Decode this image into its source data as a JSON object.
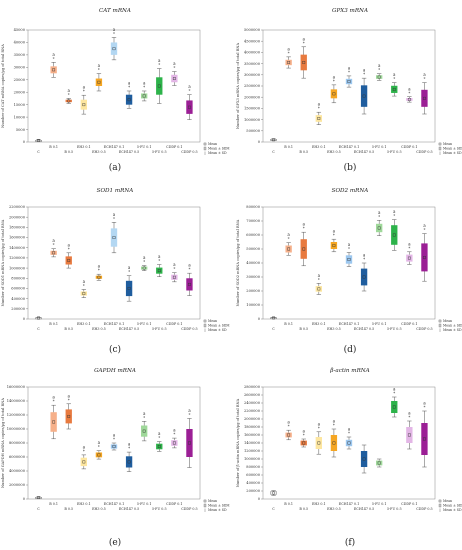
{
  "legend": {
    "mean": "Mean",
    "sem": "Mean ± SEM",
    "sd": "Mean ± SD"
  },
  "chart_data": [
    {
      "type": "box",
      "panel": "(a)",
      "title": "CAT mRNA",
      "ylabel": "Number of CAT mRNA copies/µg of total RNA",
      "ylim": [
        0,
        45000
      ],
      "yticks": [
        0,
        5000,
        10000,
        15000,
        20000,
        25000,
        30000,
        35000,
        40000,
        45000
      ],
      "categories": [
        "C",
        "B 0.1",
        "B 0.5",
        "EH3 0.1",
        "EH3 0.5",
        "ECH147 0.1",
        "ECH147 0.5",
        "5-FU 0.1",
        "5-FU 0.5",
        "CDDP 0.1",
        "CDDP 0.5"
      ],
      "sig": [
        "",
        "a",
        "a",
        "a",
        "a",
        "a",
        "a",
        "a",
        "a",
        "a",
        "a"
      ],
      "series": [
        {
          "name": "Mean",
          "values": [
            600,
            29000,
            16500,
            15000,
            24000,
            37500,
            17000,
            18500,
            22500,
            25500,
            14000
          ]
        },
        {
          "name": "SEM",
          "values": [
            100,
            1400,
            500,
            2000,
            1500,
            2500,
            2000,
            1000,
            3500,
            1500,
            2700
          ]
        },
        {
          "name": "SD",
          "values": [
            300,
            3000,
            1000,
            3800,
            3500,
            4500,
            3500,
            2000,
            7000,
            2800,
            5000
          ]
        }
      ]
    },
    {
      "type": "box",
      "panel": "(b)",
      "title": "GPX3 mRNA",
      "ylabel": "Number of GPX3 mRNA copies/µg of total RNA",
      "ylim": [
        0,
        5000000
      ],
      "yticks": [
        0,
        500000,
        1000000,
        1500000,
        2000000,
        2500000,
        3000000,
        3500000,
        4000000,
        4500000,
        5000000
      ],
      "categories": [
        "C",
        "B 0.1",
        "B 0.5",
        "EH3 0.1",
        "EH3 0.5",
        "ECH147 0.1",
        "ECH147 0.5",
        "5-FU 0.1",
        "5-FU 0.5",
        "CDDP 0.1",
        "CDDP 0.5"
      ],
      "sig": [
        "",
        "a",
        "a",
        "a",
        "a",
        "a",
        "a",
        "a",
        "a",
        "a",
        "a"
      ],
      "series": [
        {
          "name": "Mean",
          "values": [
            100000,
            3550000,
            3550000,
            1050000,
            2150000,
            2700000,
            2050000,
            2900000,
            2350000,
            1900000,
            1950000
          ]
        },
        {
          "name": "SEM",
          "values": [
            20000,
            120000,
            350000,
            150000,
            200000,
            120000,
            480000,
            80000,
            160000,
            60000,
            380000
          ]
        },
        {
          "name": "SD",
          "values": [
            40000,
            250000,
            700000,
            280000,
            400000,
            250000,
            800000,
            150000,
            300000,
            120000,
            700000
          ]
        }
      ]
    },
    {
      "type": "box",
      "panel": "(c)",
      "title": "SOD1 mRNA",
      "ylabel": "Number of SOD1 mRNA copies/µg of total RNA",
      "ylim": [
        0,
        2200000
      ],
      "yticks": [
        0,
        200000,
        400000,
        600000,
        800000,
        1000000,
        1200000,
        1400000,
        1600000,
        1800000,
        2000000,
        2200000
      ],
      "categories": [
        "C",
        "B 0.1",
        "B 0.5",
        "EH3 0.1",
        "EH3 0.5",
        "ECH147 0.1",
        "ECH147 0.5",
        "5-FU 0.1",
        "5-FU 0.5",
        "CDDP 0.1",
        "CDDP 0.5"
      ],
      "sig": [
        "",
        "a",
        "a",
        "a",
        "a",
        "a",
        "a",
        "a",
        "a",
        "a",
        "a"
      ],
      "series": [
        {
          "name": "Mean",
          "values": [
            20000,
            1300000,
            1150000,
            500000,
            820000,
            1600000,
            600000,
            1000000,
            950000,
            820000,
            680000
          ]
        },
        {
          "name": "SEM",
          "values": [
            5000,
            40000,
            80000,
            40000,
            30000,
            180000,
            150000,
            30000,
            60000,
            50000,
            120000
          ]
        },
        {
          "name": "SD",
          "values": [
            10000,
            80000,
            150000,
            80000,
            60000,
            300000,
            250000,
            50000,
            120000,
            90000,
            220000
          ]
        }
      ]
    },
    {
      "type": "box",
      "panel": "(d)",
      "title": "SOD2 mRNA",
      "ylabel": "Number of SOD2 mRNA copies/µg of total RNA",
      "ylim": [
        0,
        800000
      ],
      "yticks": [
        0,
        100000,
        200000,
        300000,
        400000,
        500000,
        600000,
        700000,
        800000
      ],
      "categories": [
        "C",
        "B 0.1",
        "B 0.5",
        "EH3 0.1",
        "EH3 0.5",
        "ECH147 0.1",
        "ECH147 0.5",
        "5-FU 0.1",
        "5-FU 0.5",
        "CDDP 0.1",
        "CDDP 0.5"
      ],
      "sig": [
        "",
        "a",
        "a",
        "a",
        "a",
        "a",
        "a",
        "a",
        "a",
        "a",
        "a"
      ],
      "series": [
        {
          "name": "Mean",
          "values": [
            8000,
            500000,
            500000,
            215000,
            525000,
            425000,
            300000,
            650000,
            600000,
            435000,
            440000
          ]
        },
        {
          "name": "SEM",
          "values": [
            2000,
            25000,
            70000,
            20000,
            25000,
            30000,
            60000,
            30000,
            70000,
            25000,
            100000
          ]
        },
        {
          "name": "SD",
          "values": [
            4000,
            45000,
            120000,
            40000,
            45000,
            50000,
            100000,
            55000,
            110000,
            45000,
            170000
          ]
        }
      ]
    },
    {
      "type": "box",
      "panel": "(e)",
      "title": "GAPDH mRNA",
      "ylabel": "Number of GAPDH mRNA copies/µg of total RNA",
      "ylim": [
        0,
        16000000
      ],
      "yticks": [
        0,
        2000000,
        4000000,
        6000000,
        8000000,
        10000000,
        12000000,
        14000000,
        16000000
      ],
      "categories": [
        "C",
        "B 0.1",
        "B 0.5",
        "EH3 0.1",
        "EH3 0.5",
        "ECH147 0.1",
        "ECH147 0.5",
        "5-FU 0.1",
        "5-FU 0.5",
        "CDDP 0.1",
        "CDDP 0.5"
      ],
      "sig": [
        "",
        "a",
        "a",
        "a",
        "a",
        "a",
        "a",
        "a",
        "a",
        "a",
        "a"
      ],
      "series": [
        {
          "name": "Mean",
          "values": [
            200000,
            11000000,
            11800000,
            5300000,
            6300000,
            7500000,
            5300000,
            9700000,
            7500000,
            8000000,
            8000000
          ]
        },
        {
          "name": "SEM",
          "values": [
            50000,
            1400000,
            1000000,
            600000,
            350000,
            300000,
            800000,
            800000,
            400000,
            400000,
            2000000
          ]
        },
        {
          "name": "SD",
          "values": [
            100000,
            2400000,
            1800000,
            1000000,
            600000,
            500000,
            1400000,
            1400000,
            700000,
            700000,
            3500000
          ]
        }
      ]
    },
    {
      "type": "box",
      "panel": "(f)",
      "title": "β-actin mRNA",
      "ylabel": "Number of β-actin mRNA copies/µg of total RNA",
      "ylim": [
        0,
        2800000
      ],
      "yticks": [
        0,
        200000,
        400000,
        600000,
        800000,
        1000000,
        1200000,
        1400000,
        1600000,
        1800000,
        2000000,
        2200000,
        2400000,
        2600000,
        2800000
      ],
      "categories": [
        "C",
        "B 0.1",
        "B 0.5",
        "EH3 0.1",
        "EH3 0.5",
        "ECH147 0.1",
        "ECH147 0.5",
        "5-FU 0.1",
        "5-FU 0.5",
        "CDDP 0.1",
        "CDDP 0.5"
      ],
      "sig": [
        "",
        "a",
        "a",
        "a",
        "a",
        "a",
        "",
        "",
        "a",
        "a",
        "a"
      ],
      "series": [
        {
          "name": "Mean",
          "values": [
            150000,
            1600000,
            1400000,
            1400000,
            1400000,
            1400000,
            1000000,
            900000,
            2300000,
            1600000,
            1500000
          ]
        },
        {
          "name": "SEM",
          "values": [
            30000,
            60000,
            60000,
            150000,
            200000,
            80000,
            200000,
            60000,
            150000,
            200000,
            400000
          ]
        },
        {
          "name": "SD",
          "values": [
            60000,
            120000,
            100000,
            280000,
            350000,
            150000,
            350000,
            100000,
            250000,
            350000,
            700000
          ]
        }
      ]
    }
  ]
}
